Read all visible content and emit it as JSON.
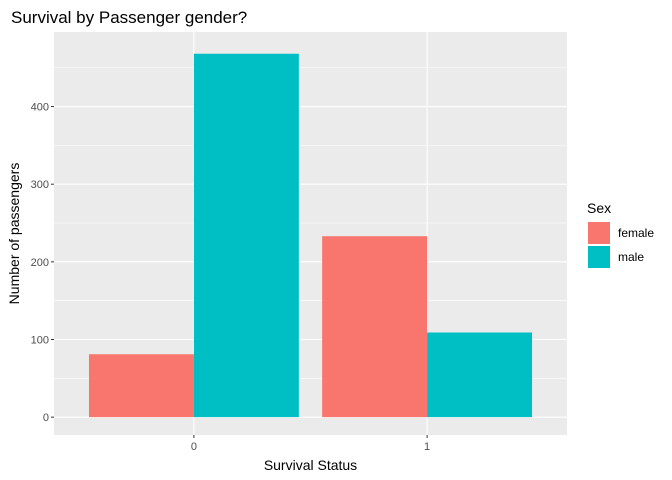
{
  "chart_data": {
    "type": "bar",
    "title": "Survival by Passenger gender?",
    "xlabel": "Survival Status",
    "ylabel": "Number of passengers",
    "categories": [
      "0",
      "1"
    ],
    "series": [
      {
        "name": "female",
        "values": [
          81,
          233
        ],
        "color": "#F8766D"
      },
      {
        "name": "male",
        "values": [
          468,
          109
        ],
        "color": "#00BFC4"
      }
    ],
    "ylim": [
      -23,
      496
    ],
    "yticks": [
      0,
      100,
      200,
      300,
      400
    ],
    "grid": true,
    "legend": {
      "title": "Sex",
      "position": "right"
    },
    "colors": {
      "panel": "#EBEBEB",
      "grid": "#FFFFFF",
      "text": "#4D4D4D"
    }
  }
}
